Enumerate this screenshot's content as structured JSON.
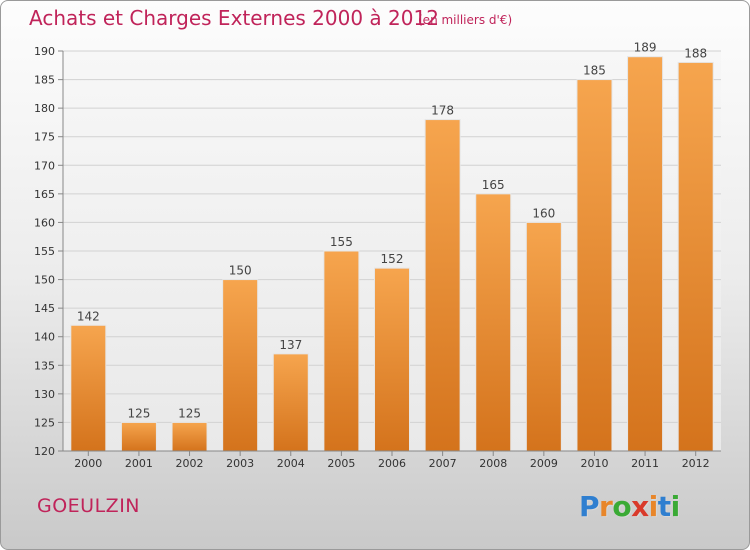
{
  "header": {
    "title": "Achats et Charges Externes 2000 à 2012",
    "unit": "(en milliers d'€)"
  },
  "footer": {
    "city": "GOEULZIN",
    "logo_letters": [
      {
        "ch": "P",
        "color": "#2f7fd0"
      },
      {
        "ch": "r",
        "color": "#e8862a"
      },
      {
        "ch": "o",
        "color": "#3aaa35"
      },
      {
        "ch": "x",
        "color": "#d93a2b"
      },
      {
        "ch": "i",
        "color": "#e8862a"
      },
      {
        "ch": "t",
        "color": "#2f7fd0"
      },
      {
        "ch": "i",
        "color": "#3aaa35"
      }
    ]
  },
  "colors": {
    "bar_top": "#f6a54e",
    "bar_bottom": "#d4731c",
    "grid": "#d2d2d2",
    "accent": "#c0245a"
  },
  "chart_data": {
    "type": "bar",
    "title": "Achats et Charges Externes 2000 à 2012",
    "subtitle": "(en milliers d'€)",
    "categories": [
      "2000",
      "2001",
      "2002",
      "2003",
      "2004",
      "2005",
      "2006",
      "2007",
      "2008",
      "2009",
      "2010",
      "2011",
      "2012"
    ],
    "values": [
      142,
      125,
      125,
      150,
      137,
      155,
      152,
      178,
      165,
      160,
      185,
      189,
      188
    ],
    "ylim": [
      120,
      190
    ],
    "yticks": [
      120,
      125,
      130,
      135,
      140,
      145,
      150,
      155,
      160,
      165,
      170,
      175,
      180,
      185,
      190
    ],
    "grid": true,
    "legend": "none"
  }
}
